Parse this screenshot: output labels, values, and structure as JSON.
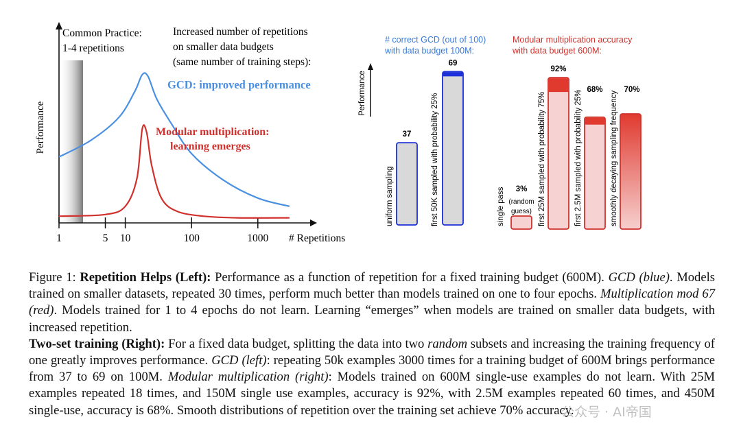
{
  "chart_data": [
    {
      "type": "line",
      "title": "",
      "xlabel": "# Repetitions",
      "ylabel": "Performance",
      "xscale": "log",
      "x_ticks": [
        "1",
        "5",
        "10",
        "100",
        "1000"
      ],
      "x_tick_values": [
        1,
        5,
        10,
        100,
        1000
      ],
      "shaded_region_label_1": "Common Practice:",
      "shaded_region_label_2": "1-4 repetitions",
      "annotation_lines": [
        "Increased number of repetitions",
        "on smaller data budgets",
        "(same number of training steps):"
      ],
      "series": [
        {
          "name_lines": [
            "GCD: improved performance"
          ],
          "color": "#4a90e2",
          "x": [
            1,
            3,
            8,
            14,
            18,
            22,
            30,
            50,
            100,
            300,
            1000,
            3000
          ],
          "values": [
            0.38,
            0.48,
            0.62,
            0.78,
            0.88,
            0.87,
            0.73,
            0.58,
            0.4,
            0.24,
            0.13,
            0.08
          ]
        },
        {
          "name_lines": [
            "Modular multiplication:",
            "learning emerges"
          ],
          "color": "#d0312d",
          "x": [
            1,
            5,
            10,
            15,
            18,
            21,
            25,
            35,
            60,
            150,
            500,
            3000
          ],
          "values": [
            0.02,
            0.03,
            0.08,
            0.25,
            0.55,
            0.53,
            0.33,
            0.13,
            0.05,
            0.02,
            0.01,
            0.01
          ]
        }
      ]
    },
    {
      "type": "bar",
      "title_lines": [
        "# correct GCD (out of 100)",
        "with data budget 100M:"
      ],
      "title_color": "#3a7ad8",
      "ylabel": "Performance",
      "ylim": [
        0,
        100
      ],
      "categories": [
        "uniform sampling",
        "first 50K sampled with probability 25%"
      ],
      "values": [
        37,
        69
      ],
      "value_labels": [
        "37",
        "69"
      ],
      "highlight": [
        0,
        6
      ]
    },
    {
      "type": "bar",
      "title_lines": [
        "Modular multiplication accuracy",
        "with data budget 600M:"
      ],
      "title_color": "#d0312d",
      "ylim": [
        0,
        100
      ],
      "categories": [
        "single pass",
        "first 25M sampled with probability 75%",
        "first 2.5M sampled with probability 25%",
        "smoothly decaying sampling frequency"
      ],
      "values": [
        3,
        92,
        68,
        70
      ],
      "value_labels": [
        "3%",
        "92%",
        "68%",
        "70%"
      ],
      "sub_labels": [
        "(random",
        "guess)"
      ],
      "highlight": [
        0,
        20,
        10,
        0
      ]
    }
  ],
  "caption": {
    "fig_label": "Figure 1:",
    "p1_bold": "Repetition Helps (Left):",
    "p1_text1": " Performance as a function of repetition for a fixed training budget (600M). ",
    "p1_italic1": "GCD (blue)",
    "p1_text2": ". Models trained on smaller datasets, repeated 30 times, perform much better than models trained on one to four epochs. ",
    "p1_italic2": "Multiplication mod 67 (red)",
    "p1_text3": ". Models trained for 1 to 4 epochs do not learn. Learning “emerges” when models are trained on smaller data budgets, with increased repetition.",
    "p2_bold": "Two-set training (Right):",
    "p2_text1": " For a fixed data budget, splitting the data into two ",
    "p2_italic1": "random",
    "p2_text2": " subsets and increasing the training frequency of one greatly improves performance. ",
    "p2_italic2": "GCD (left)",
    "p2_text3": ": repeating 50k examples 3000 times for a training budget of 600M brings performance from 37 to 69 on 100M. ",
    "p2_italic3": "Modular multiplication (right)",
    "p2_text4": ": Models trained on 600M single-use examples do not learn. With 25M examples repeated 18 times, and 150M single use examples, accuracy is 92%, with 2.5M examples repeated 60 times, and 450M single-use, accuracy is 68%. Smooth distributions of repetition over the training set achieve 70% accuracy."
  },
  "watermark": "公众号 · AI帝国"
}
